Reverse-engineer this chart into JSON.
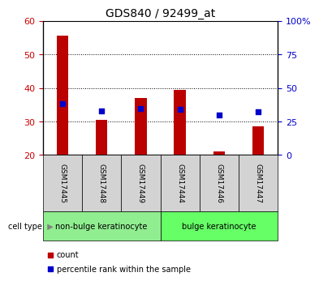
{
  "title": "GDS840 / 92499_at",
  "samples": [
    "GSM17445",
    "GSM17448",
    "GSM17449",
    "GSM17444",
    "GSM17446",
    "GSM17447"
  ],
  "count_values": [
    55.5,
    30.5,
    37.0,
    39.5,
    21.0,
    28.5
  ],
  "percentile_values": [
    38.5,
    33.0,
    34.5,
    34.0,
    30.0,
    32.5
  ],
  "count_base": 20,
  "ylim_left": [
    20,
    60
  ],
  "ylim_right": [
    0,
    100
  ],
  "yticks_left": [
    20,
    30,
    40,
    50,
    60
  ],
  "yticks_right": [
    0,
    25,
    50,
    75,
    100
  ],
  "ytick_labels_right": [
    "0",
    "25",
    "50",
    "75",
    "100%"
  ],
  "grid_yticks": [
    30,
    40,
    50
  ],
  "groups": [
    {
      "label": "non-bulge keratinocyte",
      "indices": [
        0,
        1,
        2
      ],
      "color": "#90EE90"
    },
    {
      "label": "bulge keratinocyte",
      "indices": [
        3,
        4,
        5
      ],
      "color": "#66FF66"
    }
  ],
  "bar_color": "#BB0000",
  "dot_color": "#0000CC",
  "bar_width": 0.3,
  "dot_size": 25,
  "cell_type_label": "cell type",
  "legend_count_label": "count",
  "legend_percentile_label": "percentile rank within the sample",
  "bg_color": "#FFFFFF",
  "plot_bg": "#FFFFFF",
  "tick_label_color_left": "#CC0000",
  "tick_label_color_right": "#0000CC",
  "xticklabel_bg": "#D3D3D3",
  "title_fontsize": 10
}
